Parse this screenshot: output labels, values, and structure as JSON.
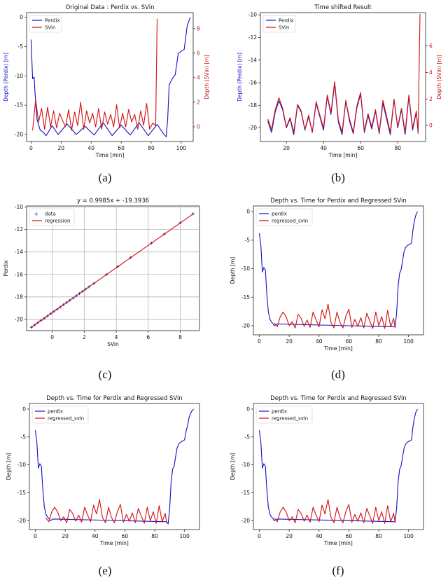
{
  "captions": [
    "(a)",
    "(b)",
    "(c)",
    "(d)",
    "(e)",
    "(f)"
  ],
  "chart_data": [
    {
      "type": "line",
      "title": "Original Data : Perdix vs. SVin",
      "xlabel": "Time [min]",
      "ylabel": "Depth (Perdix) [m]",
      "y2label": "Depth (SVin) [m]",
      "xlim": [
        -3,
        108
      ],
      "ylim": [
        -21.2,
        0.8
      ],
      "y2lim": [
        -1.2,
        9.3
      ],
      "xticks": [
        0,
        20,
        40,
        60,
        80,
        100
      ],
      "yticks": [
        -20,
        -15,
        -10,
        -5,
        0
      ],
      "y2ticks": [
        0,
        2,
        4,
        6,
        8
      ],
      "legend": [
        "Perdix",
        "SVin"
      ],
      "legend_position": "top-left",
      "series": [
        {
          "name": "Perdix",
          "axis": "left",
          "color": "#1010c8",
          "x": [
            0,
            1,
            2,
            3,
            4,
            6,
            8,
            10,
            14,
            18,
            24,
            30,
            36,
            42,
            48,
            54,
            60,
            66,
            72,
            78,
            84,
            88,
            90,
            91,
            92,
            94,
            96,
            98,
            100,
            102,
            104,
            106
          ],
          "y": [
            -3.8,
            -10.5,
            -10.2,
            -14.5,
            -17.5,
            -19.2,
            -19.6,
            -20.2,
            -18.5,
            -20.0,
            -18.2,
            -20.0,
            -18.6,
            -20.1,
            -18.0,
            -20.2,
            -18.4,
            -20.1,
            -18.0,
            -20.2,
            -18.3,
            -19.8,
            -20.4,
            -17.5,
            -11.5,
            -10.5,
            -9.8,
            -6.2,
            -5.8,
            -5.5,
            -1.5,
            0.0
          ]
        },
        {
          "name": "SVin",
          "axis": "right",
          "color": "#d01010",
          "x": [
            1,
            3,
            5,
            7,
            9,
            11,
            13,
            15,
            17,
            19,
            21,
            23,
            25,
            27,
            29,
            31,
            33,
            35,
            37,
            39,
            41,
            43,
            45,
            47,
            49,
            51,
            53,
            55,
            57,
            59,
            61,
            63,
            65,
            67,
            69,
            71,
            73,
            75,
            77,
            79,
            81,
            83,
            84
          ],
          "y": [
            -0.3,
            2.2,
            0.4,
            1.5,
            -0.2,
            1.6,
            0.0,
            1.3,
            -0.1,
            1.1,
            0.5,
            0.0,
            1.4,
            -0.3,
            1.2,
            0.1,
            2.0,
            -0.2,
            1.3,
            0.3,
            1.1,
            0.0,
            1.5,
            -0.2,
            1.2,
            0.2,
            1.0,
            0.0,
            1.8,
            -0.1,
            1.1,
            0.0,
            1.4,
            0.4,
            1.0,
            -0.2,
            1.3,
            0.1,
            1.9,
            -0.2,
            0.3,
            0.1,
            8.8
          ]
        }
      ]
    },
    {
      "type": "line",
      "title": "Time shifted Result",
      "xlabel": "Time [min]",
      "ylabel": "Depth (Perdix) [m]",
      "y2label": "Depth (SVin) [m]",
      "xlim": [
        6,
        95
      ],
      "ylim": [
        -21.2,
        -9.8
      ],
      "y2lim": [
        -1.2,
        8.5
      ],
      "xticks": [
        20,
        40,
        60,
        80
      ],
      "yticks": [
        -20,
        -18,
        -16,
        -14,
        -12,
        -10
      ],
      "y2ticks": [
        0,
        2,
        4,
        6
      ],
      "legend": [
        "Perdix",
        "SVin"
      ],
      "legend_position": "top-left",
      "series": [
        {
          "name": "Perdix",
          "axis": "left",
          "color": "#1010c8",
          "x": [
            10,
            12,
            14,
            16,
            18,
            20,
            22,
            24,
            26,
            28,
            30,
            32,
            34,
            36,
            38,
            40,
            42,
            44,
            46,
            48,
            50,
            52,
            54,
            56,
            58,
            60,
            62,
            64,
            66,
            68,
            70,
            72,
            74,
            76,
            78,
            80,
            82,
            84,
            86,
            88,
            90,
            91
          ],
          "y": [
            -19.4,
            -20.4,
            -18.6,
            -17.6,
            -18.4,
            -20.0,
            -19.2,
            -20.6,
            -18.0,
            -18.6,
            -20.2,
            -19.0,
            -20.4,
            -17.8,
            -19.0,
            -20.2,
            -17.2,
            -18.8,
            -16.1,
            -19.5,
            -20.6,
            -17.6,
            -19.4,
            -20.5,
            -18.2,
            -17.0,
            -20.4,
            -18.9,
            -20.1,
            -18.5,
            -20.5,
            -17.8,
            -19.2,
            -20.6,
            -17.5,
            -20.0,
            -18.4,
            -20.6,
            -17.2,
            -20.2,
            -18.6,
            -20.5
          ]
        },
        {
          "name": "SVin",
          "axis": "right",
          "color": "#d01010",
          "x": [
            10,
            12,
            14,
            16,
            18,
            20,
            22,
            24,
            26,
            28,
            30,
            32,
            34,
            36,
            38,
            40,
            42,
            44,
            46,
            48,
            50,
            52,
            54,
            56,
            58,
            60,
            62,
            64,
            66,
            68,
            70,
            72,
            74,
            76,
            78,
            80,
            82,
            84,
            86,
            88,
            90,
            91,
            92
          ],
          "y": [
            0.5,
            -0.3,
            1.2,
            2.1,
            1.3,
            -0.1,
            0.6,
            -0.5,
            1.6,
            1.1,
            -0.3,
            0.8,
            -0.5,
            1.8,
            0.8,
            -0.2,
            2.3,
            1.0,
            3.3,
            0.4,
            -0.5,
            1.9,
            0.5,
            -0.5,
            1.5,
            2.5,
            -0.4,
            0.9,
            -0.1,
            1.2,
            -0.5,
            1.9,
            0.7,
            -0.5,
            2.0,
            -0.1,
            1.3,
            -0.5,
            2.3,
            -0.2,
            1.1,
            -0.4,
            8.4
          ]
        }
      ]
    },
    {
      "type": "scatter",
      "title": "y = 0.9985x + -19.3936",
      "xlabel": "SVin",
      "ylabel": "Perdix",
      "xlim": [
        -1.6,
        9.2
      ],
      "ylim": [
        -21.0,
        -9.9
      ],
      "xticks": [
        0,
        2,
        4,
        6,
        8
      ],
      "yticks": [
        -20,
        -18,
        -16,
        -14,
        -12,
        -10
      ],
      "grid": true,
      "legend": [
        "data",
        "regression"
      ],
      "legend_position": "top-left",
      "slope": 0.9985,
      "intercept": -19.3936,
      "series": [
        {
          "name": "data",
          "color": "#1010c8",
          "x": [
            -1.3,
            -1.1,
            -0.9,
            -0.7,
            -0.5,
            -0.3,
            -0.1,
            0.1,
            0.3,
            0.5,
            0.7,
            0.9,
            1.1,
            1.3,
            1.5,
            1.7,
            1.9,
            2.1,
            2.3,
            2.6,
            3.4,
            4.1,
            4.9,
            6.2,
            7.0,
            8.0,
            8.8
          ],
          "y": [
            -20.7,
            -20.5,
            -20.3,
            -20.1,
            -19.9,
            -19.7,
            -19.5,
            -19.3,
            -19.1,
            -18.9,
            -18.7,
            -18.5,
            -18.3,
            -18.1,
            -17.9,
            -17.7,
            -17.5,
            -17.3,
            -17.1,
            -16.8,
            -16.0,
            -15.3,
            -14.5,
            -13.2,
            -12.4,
            -11.4,
            -10.6
          ]
        },
        {
          "name": "regression",
          "color": "#d01010",
          "x": [
            -1.3,
            8.8
          ],
          "y": [
            -20.69,
            -10.61
          ]
        }
      ]
    },
    {
      "type": "line",
      "title": "Depth vs. Time for Perdix and Regressed SVin",
      "xlabel": "Time [min]",
      "ylabel": "Depth [m]",
      "xlim": [
        -4,
        110
      ],
      "ylim": [
        -21.6,
        1.0
      ],
      "xticks": [
        0,
        20,
        40,
        60,
        80,
        100
      ],
      "yticks": [
        -20,
        -15,
        -10,
        -5,
        0
      ],
      "legend": [
        "perdix",
        "regressed_svin"
      ],
      "legend_position": "top-left",
      "series": [
        {
          "name": "perdix",
          "color": "#1010c8",
          "x": [
            0,
            1,
            2,
            3,
            4,
            5,
            6,
            7,
            8,
            9,
            10,
            12,
            91,
            92,
            93,
            94,
            95,
            96,
            97,
            98,
            99,
            100,
            101,
            102,
            103,
            104,
            105,
            106
          ],
          "y": [
            -3.8,
            -6.0,
            -10.6,
            -9.8,
            -10.2,
            -14.5,
            -17.5,
            -18.8,
            -19.3,
            -19.6,
            -20.0,
            -19.7,
            -20.2,
            -17.8,
            -13.0,
            -10.8,
            -10.2,
            -8.5,
            -7.0,
            -6.3,
            -6.0,
            -5.8,
            -5.7,
            -5.5,
            -3.0,
            -1.5,
            -0.5,
            0.0
          ]
        },
        {
          "name": "regressed_svin",
          "color": "#d01010",
          "x": [
            10,
            12,
            14,
            16,
            18,
            20,
            22,
            24,
            26,
            28,
            30,
            32,
            34,
            36,
            38,
            40,
            42,
            44,
            46,
            48,
            50,
            52,
            54,
            56,
            58,
            60,
            62,
            64,
            66,
            68,
            70,
            72,
            74,
            76,
            78,
            80,
            82,
            84,
            86,
            88,
            90,
            91
          ],
          "y": [
            -19.5,
            -20.2,
            -18.4,
            -17.6,
            -18.5,
            -20.0,
            -19.3,
            -20.4,
            -18.0,
            -18.7,
            -20.1,
            -19.0,
            -20.3,
            -17.6,
            -19.0,
            -20.2,
            -17.2,
            -18.8,
            -16.2,
            -19.4,
            -20.4,
            -17.6,
            -19.4,
            -20.4,
            -18.3,
            -17.1,
            -20.3,
            -18.9,
            -20.1,
            -18.6,
            -20.4,
            -17.8,
            -19.2,
            -20.5,
            -17.6,
            -20.0,
            -18.4,
            -20.5,
            -17.3,
            -20.2,
            -18.7,
            -20.4
          ]
        }
      ]
    },
    {
      "type": "line",
      "title": "Depth vs. Time for Perdix and Regressed SVin",
      "xlabel": "Time [min]",
      "ylabel": "Depth [m]",
      "xlim": [
        -4,
        110
      ],
      "ylim": [
        -21.6,
        1.0
      ],
      "xticks": [
        0,
        20,
        40,
        60,
        80,
        100
      ],
      "yticks": [
        -20,
        -15,
        -10,
        -5,
        0
      ],
      "legend": [
        "perdix",
        "regressed_svin"
      ],
      "legend_position": "top-left",
      "series": [
        {
          "name": "perdix",
          "color": "#1010c8",
          "x": [
            0,
            1,
            2,
            3,
            4,
            5,
            6,
            7,
            8,
            9,
            10,
            12,
            88,
            89,
            90,
            91,
            92,
            93,
            94,
            95,
            96,
            97,
            98,
            99,
            100,
            101,
            102,
            103,
            104,
            105,
            106
          ],
          "y": [
            -3.8,
            -6.0,
            -10.6,
            -9.8,
            -10.2,
            -14.5,
            -17.5,
            -18.8,
            -19.3,
            -19.6,
            -20.0,
            -19.7,
            -20.2,
            -20.6,
            -17.8,
            -13.0,
            -10.8,
            -10.2,
            -8.5,
            -7.0,
            -6.3,
            -6.0,
            -5.8,
            -5.7,
            -5.5,
            -4.0,
            -3.0,
            -1.5,
            -0.8,
            -0.3,
            0.0
          ]
        },
        {
          "name": "regressed_svin",
          "color": "#d01010",
          "x": [
            7,
            9,
            11,
            13,
            15,
            17,
            19,
            21,
            23,
            25,
            27,
            29,
            31,
            33,
            35,
            37,
            39,
            41,
            43,
            45,
            47,
            49,
            51,
            53,
            55,
            57,
            59,
            61,
            63,
            65,
            67,
            69,
            71,
            73,
            75,
            77,
            79,
            81,
            83,
            85,
            87,
            88
          ],
          "y": [
            -19.5,
            -20.2,
            -18.4,
            -17.6,
            -18.5,
            -20.0,
            -19.3,
            -20.4,
            -18.0,
            -18.7,
            -20.1,
            -19.0,
            -20.3,
            -17.6,
            -19.0,
            -20.2,
            -17.2,
            -18.8,
            -16.2,
            -19.4,
            -20.4,
            -17.6,
            -19.4,
            -20.4,
            -18.3,
            -17.1,
            -20.3,
            -18.9,
            -20.1,
            -18.6,
            -20.4,
            -17.8,
            -19.2,
            -20.5,
            -17.6,
            -20.0,
            -18.4,
            -20.5,
            -17.3,
            -20.2,
            -18.7,
            -20.4
          ]
        }
      ]
    },
    {
      "type": "line",
      "title": "Depth vs. Time for Perdix and Regressed SVin",
      "xlabel": "Time [min]",
      "ylabel": "Depth [m]",
      "xlim": [
        -4,
        110
      ],
      "ylim": [
        -21.6,
        1.0
      ],
      "xticks": [
        0,
        20,
        40,
        60,
        80,
        100
      ],
      "yticks": [
        -20,
        -15,
        -10,
        -5,
        0
      ],
      "legend": [
        "perdix",
        "regressed_svin"
      ],
      "legend_position": "top-left",
      "series": [
        {
          "name": "perdix",
          "color": "#1010c8",
          "x": [
            0,
            1,
            2,
            3,
            4,
            5,
            6,
            7,
            8,
            9,
            10,
            12,
            91,
            92,
            93,
            94,
            95,
            96,
            97,
            98,
            99,
            100,
            101,
            102,
            103,
            104,
            105,
            106
          ],
          "y": [
            -3.8,
            -6.0,
            -10.6,
            -9.8,
            -10.2,
            -14.5,
            -17.5,
            -18.8,
            -19.3,
            -19.6,
            -20.0,
            -19.7,
            -20.2,
            -17.8,
            -13.0,
            -10.8,
            -10.2,
            -8.5,
            -7.0,
            -6.3,
            -6.0,
            -5.8,
            -5.7,
            -5.5,
            -3.0,
            -1.5,
            -0.5,
            0.0
          ]
        },
        {
          "name": "regressed_svin",
          "color": "#d01010",
          "x": [
            10,
            12,
            14,
            16,
            18,
            20,
            22,
            24,
            26,
            28,
            30,
            32,
            34,
            36,
            38,
            40,
            42,
            44,
            46,
            48,
            50,
            52,
            54,
            56,
            58,
            60,
            62,
            64,
            66,
            68,
            70,
            72,
            74,
            76,
            78,
            80,
            82,
            84,
            86,
            88,
            90,
            91
          ],
          "y": [
            -19.5,
            -20.2,
            -18.4,
            -17.6,
            -18.5,
            -20.0,
            -19.3,
            -20.4,
            -18.0,
            -18.7,
            -20.1,
            -19.0,
            -20.3,
            -17.6,
            -19.0,
            -20.2,
            -17.2,
            -18.8,
            -16.2,
            -19.4,
            -20.4,
            -17.6,
            -19.4,
            -20.4,
            -18.3,
            -17.1,
            -20.3,
            -18.9,
            -20.1,
            -18.6,
            -20.4,
            -17.8,
            -19.2,
            -20.5,
            -17.6,
            -20.0,
            -18.4,
            -20.5,
            -17.3,
            -20.2,
            -18.7,
            -20.4
          ]
        }
      ]
    }
  ]
}
